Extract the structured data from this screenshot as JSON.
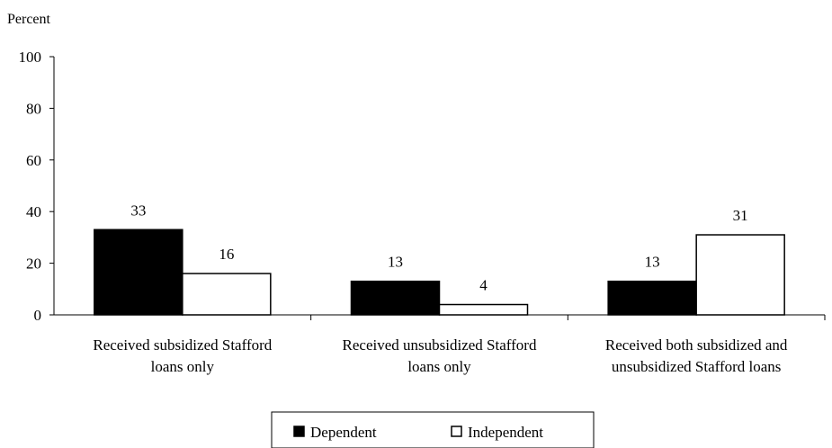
{
  "chart_data": {
    "type": "bar",
    "ylabel": "Percent",
    "ylim": [
      0,
      100
    ],
    "yticks": [
      0,
      20,
      40,
      60,
      80,
      100
    ],
    "categories": [
      [
        "Received subsidized Stafford",
        "loans only"
      ],
      [
        "Received unsubsidized Stafford",
        "loans only"
      ],
      [
        "Received both subsidized and",
        "unsubsidized Stafford loans"
      ]
    ],
    "series": [
      {
        "name": "Dependent",
        "values": [
          33,
          13,
          13
        ],
        "color": "#000000"
      },
      {
        "name": "Independent",
        "values": [
          16,
          4,
          31
        ],
        "color": "#ffffff"
      }
    ],
    "value_labels": [
      [
        "33",
        "13",
        "13"
      ],
      [
        "16",
        "4",
        "31"
      ]
    ],
    "grid": false,
    "legend_position": "bottom-center"
  }
}
